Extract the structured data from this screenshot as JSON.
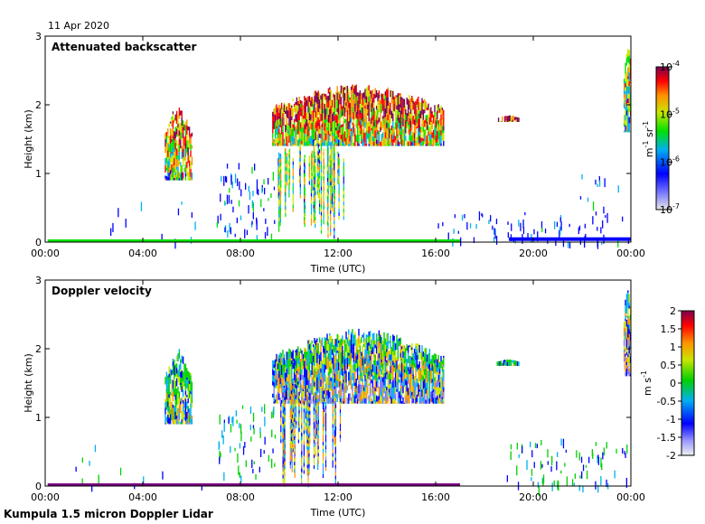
{
  "date_label": "11 Apr 2020",
  "footer_label": "Kumpula 1.5 micron Doppler Lidar",
  "chart_data": [
    {
      "type": "heatmap",
      "title": "Attenuated backscatter",
      "xlabel": "Time (UTC)",
      "ylabel": "Height (km)",
      "x_ticks": [
        "00:00",
        "04:00",
        "08:00",
        "12:00",
        "16:00",
        "20:00",
        "00:00"
      ],
      "x_range_hours": [
        0,
        24
      ],
      "y_ticks": [
        "0",
        "1",
        "2",
        "3"
      ],
      "ylim": [
        0,
        3
      ],
      "colorbar": {
        "scale": "log",
        "range": [
          1e-07,
          0.0001
        ],
        "ticks": [
          {
            "base": "10",
            "exp": "-4"
          },
          {
            "base": "10",
            "exp": "-5"
          },
          {
            "base": "10",
            "exp": "-6"
          },
          {
            "base": "10",
            "exp": "-7"
          }
        ],
        "unit_main": "m",
        "unit_exp1": "-1",
        "unit_mid": " sr",
        "unit_exp2": "-1"
      }
    },
    {
      "type": "heatmap",
      "title": "Doppler velocity",
      "xlabel": "Time (UTC)",
      "ylabel": "Height (km)",
      "x_ticks": [
        "00:00",
        "04:00",
        "08:00",
        "12:00",
        "16:00",
        "20:00",
        "00:00"
      ],
      "x_range_hours": [
        0,
        24
      ],
      "y_ticks": [
        "0",
        "1",
        "2",
        "3"
      ],
      "ylim": [
        0,
        3
      ],
      "colorbar": {
        "scale": "linear",
        "range": [
          -2,
          2
        ],
        "ticks": [
          "2",
          "1.5",
          "1",
          "0.5",
          "0",
          "-0.5",
          "-1",
          "-1.5",
          "-2"
        ],
        "unit_main": "m s",
        "unit_exp1": "-1"
      }
    }
  ]
}
